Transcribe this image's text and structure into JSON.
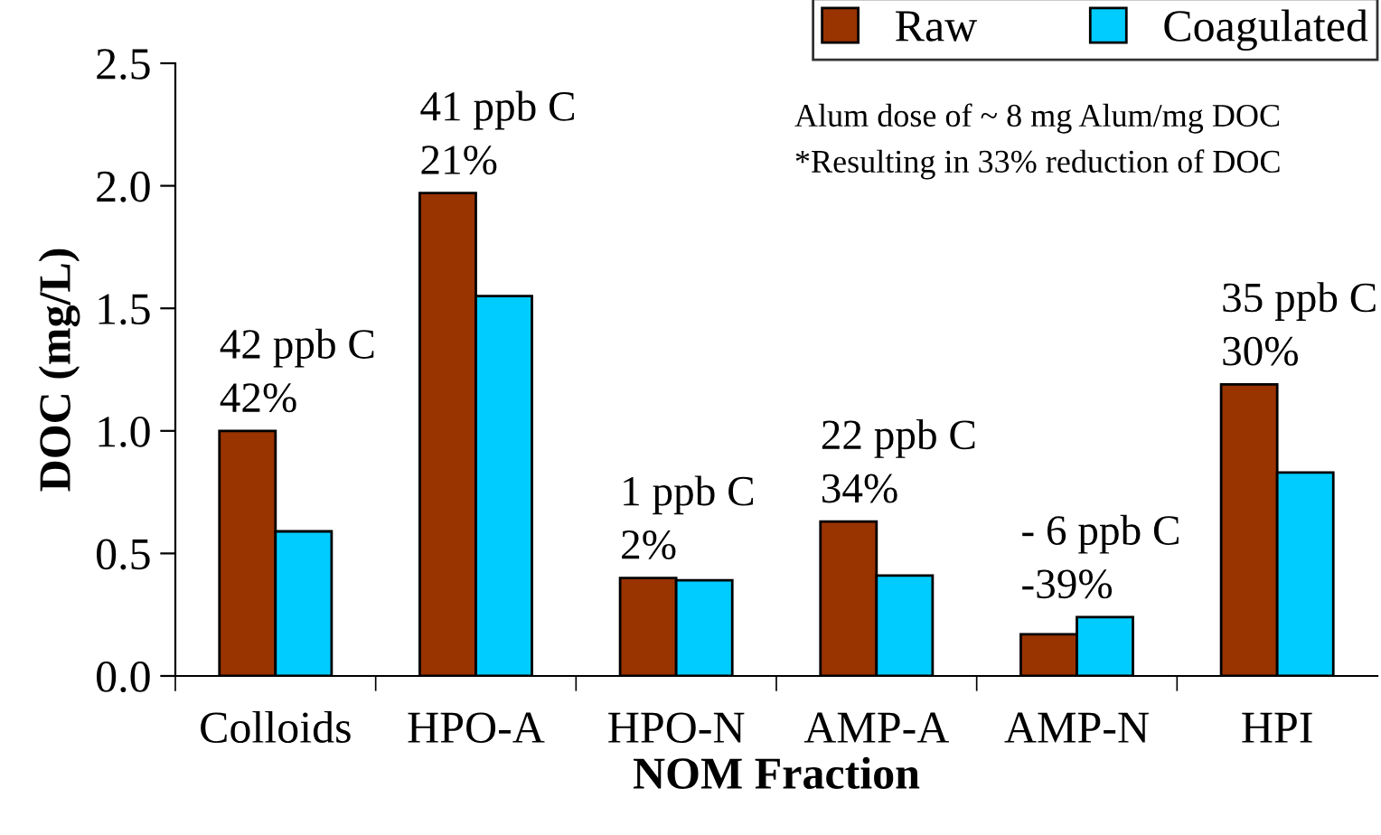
{
  "chart_data": {
    "type": "bar",
    "xlabel": "NOM Fraction",
    "ylabel": "DOC (mg/L)",
    "categories": [
      "Colloids",
      "HPO-A",
      "HPO-N",
      "AMP-A",
      "AMP-N",
      "HPI"
    ],
    "series": [
      {
        "name": "Raw",
        "color": "#993300",
        "values": [
          1.0,
          1.97,
          0.4,
          0.63,
          0.17,
          1.19
        ]
      },
      {
        "name": "Coagulated",
        "color": "#00ccff",
        "values": [
          0.59,
          1.55,
          0.39,
          0.41,
          0.24,
          0.83
        ]
      }
    ],
    "ylim": [
      0,
      2.5
    ],
    "yticks": [
      {
        "value": 0,
        "label": "0.0"
      },
      {
        "value": 0.5,
        "label": "0.5"
      },
      {
        "value": 1,
        "label": "1.0"
      },
      {
        "value": 1.5,
        "label": "1.5"
      },
      {
        "value": 2,
        "label": "2.0"
      },
      {
        "value": 2.5,
        "label": "2.5"
      }
    ],
    "grid": false,
    "legend": "top right",
    "annotations": [
      {
        "text": "42 ppb C\n42%",
        "x": "Colloids",
        "y": 1.0
      },
      {
        "text": "41 ppb C\n21%",
        "x": "HPO-A",
        "y": 1.97
      },
      {
        "text": "1 ppb C\n2%",
        "x": "HPO-N",
        "y": 0.4
      },
      {
        "text": "22 ppb C\n34%",
        "x": "AMP-A",
        "y": 0.63
      },
      {
        "text": "- 6 ppb C\n-39%",
        "x": "AMP-N",
        "y": 0.24
      },
      {
        "text": "35 ppb C\n30%",
        "x": "HPI",
        "y": 1.19
      },
      "Alum dose of ~ 8 mg Alum/mg DOC",
      "*Resulting in 33% reduction of DOC"
    ]
  }
}
